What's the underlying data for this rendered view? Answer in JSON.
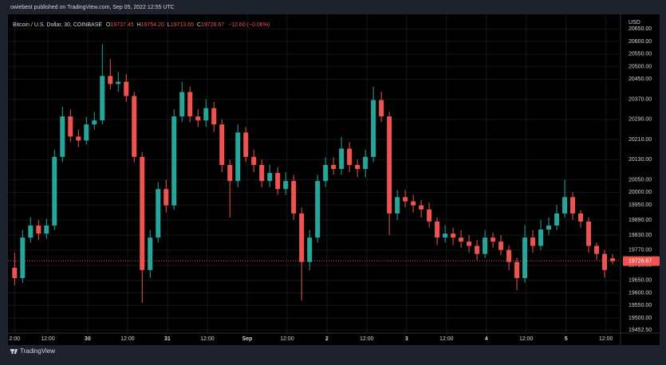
{
  "header": {
    "text": "owiebest published on TradingView.com, Sep 05, 2022 12:55 UTC"
  },
  "footer": {
    "brand": "TradingView"
  },
  "chart_data": {
    "type": "candlestick",
    "legend": {
      "symbol": "Bitcoin / U.S. Dollar, 30, COINBASE",
      "keys": [
        "O",
        "H",
        "L",
        "C"
      ],
      "values": [
        {
          "value": 19737.45,
          "label": "19737.45"
        },
        {
          "value": 19754.2,
          "label": "19754.20"
        },
        {
          "value": 19713.65,
          "label": "19713.65"
        },
        {
          "value": 19726.67,
          "label": "19726.67"
        }
      ],
      "change": {
        "value": -12.6,
        "label": "−12.60 (−0.06%)"
      }
    },
    "y_axis_label": "USD",
    "up_color": "#26a69a",
    "down_color": "#ef5350",
    "x": [
      0,
      2.4,
      4.8,
      7.2,
      9.6,
      12,
      14.4,
      16.8,
      19.2,
      21.6,
      24,
      26.4,
      28.8,
      31.2,
      33.6,
      36,
      38.4,
      40.8,
      43.2,
      45.6,
      48,
      50.4,
      52.8,
      55.2,
      57.6,
      60,
      62.4,
      64.8,
      67.2,
      69.6,
      72,
      74.4,
      76.8,
      79.2,
      81.6,
      84,
      86.4,
      88.8,
      91.2,
      93.6,
      96,
      98.4,
      100.8,
      103.2,
      105.6,
      108,
      110.4,
      112.8,
      115.2,
      117.6,
      120,
      122.4,
      124.8,
      127.2,
      129.6,
      132,
      134.4,
      136.8,
      139.2,
      141.6,
      144,
      146.4,
      148.8,
      151.2,
      153.6,
      156,
      158.4,
      160.8,
      163.2,
      165.6,
      168,
      170.4,
      172.8,
      175.2,
      177.6,
      180
    ],
    "open": [
      19700,
      19659,
      19820,
      19868,
      19836,
      19868,
      20141,
      20302,
      20222,
      20206,
      20270,
      20286,
      20463,
      20431,
      20440,
      20383,
      20141,
      19691,
      19820,
      20013,
      19948,
      20302,
      20399,
      20302,
      20286,
      20335,
      20270,
      20109,
      20045,
      20238,
      20141,
      20109,
      20045,
      20077,
      20013,
      20045,
      19916,
      19723,
      19820,
      20045,
      20109,
      20093,
      20174,
      20109,
      20093,
      20141,
      20367,
      20302,
      19916,
      19981,
      19964,
      19948,
      19932,
      19884,
      19820,
      19836,
      19820,
      19804,
      19787,
      19755,
      19820,
      19804,
      19771,
      19723,
      19659,
      19820,
      19787,
      19852,
      19868,
      19916,
      19981,
      19916,
      19884,
      19787,
      19755,
      19737.45
    ],
    "high": [
      19760,
      19850,
      19900,
      19890,
      19895,
      20170,
      20340,
      20330,
      20250,
      20300,
      20320,
      20590,
      20530,
      20480,
      20470,
      20400,
      20160,
      19850,
      20040,
      20050,
      20330,
      20440,
      20420,
      20330,
      20370,
      20360,
      20290,
      20130,
      20270,
      20260,
      20170,
      20130,
      20110,
      20100,
      20080,
      20070,
      19940,
      19850,
      20070,
      20140,
      20140,
      20220,
      20200,
      20130,
      20170,
      20420,
      20400,
      20320,
      20010,
      20010,
      19990,
      19970,
      19960,
      19900,
      19870,
      19860,
      19850,
      19830,
      19810,
      19850,
      19840,
      19830,
      19790,
      19740,
      19870,
      19850,
      19890,
      19900,
      19950,
      20050,
      20000,
      19930,
      19900,
      19800,
      19770,
      19754.2
    ],
    "low": [
      19630,
      19640,
      19800,
      19810,
      19815,
      19850,
      20120,
      20200,
      20180,
      20190,
      20250,
      20270,
      20410,
      20400,
      20360,
      20120,
      19560,
      19660,
      19800,
      19920,
      19930,
      20280,
      20280,
      20260,
      20260,
      20240,
      20080,
      19900,
      20020,
      20120,
      20080,
      20020,
      20020,
      19990,
      19990,
      19890,
      19570,
      19690,
      19800,
      20020,
      20070,
      20070,
      20080,
      20060,
      20060,
      20120,
      20280,
      19830,
      19890,
      19940,
      19920,
      19900,
      19860,
      19790,
      19800,
      19790,
      19780,
      19760,
      19730,
      19740,
      19780,
      19750,
      19690,
      19610,
      19640,
      19760,
      19770,
      19830,
      19850,
      19900,
      19890,
      19860,
      19760,
      19730,
      19660,
      19713.65
    ],
    "close": [
      19659,
      19820,
      19868,
      19836,
      19868,
      20141,
      20302,
      20222,
      20206,
      20270,
      20286,
      20463,
      20431,
      20440,
      20383,
      20141,
      19691,
      19820,
      20013,
      19948,
      20302,
      20399,
      20302,
      20286,
      20335,
      20270,
      20109,
      20045,
      20238,
      20141,
      20109,
      20045,
      20077,
      20013,
      20045,
      19916,
      19723,
      19820,
      20045,
      20109,
      20093,
      20174,
      20109,
      20093,
      20141,
      20367,
      20302,
      19916,
      19981,
      19964,
      19948,
      19932,
      19884,
      19820,
      19836,
      19820,
      19804,
      19787,
      19755,
      19820,
      19804,
      19771,
      19723,
      19659,
      19820,
      19787,
      19852,
      19868,
      19916,
      19981,
      19916,
      19884,
      19787,
      19755,
      19691,
      19726.67
    ],
    "xlim": [
      -2,
      182.4
    ],
    "ylim": [
      19440,
      20708
    ],
    "xticks": [
      {
        "value": 0,
        "label": "2:00"
      },
      {
        "value": 10,
        "label": "12:00"
      },
      {
        "value": 22,
        "label": "30"
      },
      {
        "value": 34,
        "label": "12:00"
      },
      {
        "value": 46,
        "label": "31"
      },
      {
        "value": 58,
        "label": "12:00"
      },
      {
        "value": 70,
        "label": "Sep"
      },
      {
        "value": 82,
        "label": "12:00"
      },
      {
        "value": 94,
        "label": "2"
      },
      {
        "value": 106,
        "label": "12:00"
      },
      {
        "value": 118,
        "label": "3"
      },
      {
        "value": 130,
        "label": "12:00"
      },
      {
        "value": 142,
        "label": "4"
      },
      {
        "value": 154,
        "label": "12:00"
      },
      {
        "value": 166,
        "label": "5"
      },
      {
        "value": 178,
        "label": "12:00"
      }
    ],
    "yticks": [
      {
        "value": 20650,
        "label": "20650.00"
      },
      {
        "value": 20600,
        "label": "20600.00"
      },
      {
        "value": 20550,
        "label": "20550.00"
      },
      {
        "value": 20500,
        "label": "20500.00"
      },
      {
        "value": 20450,
        "label": "20450.00"
      },
      {
        "value": 20370,
        "label": "20370.00"
      },
      {
        "value": 20290,
        "label": "20290.00"
      },
      {
        "value": 20210,
        "label": "20210.00"
      },
      {
        "value": 20130,
        "label": "20130.00"
      },
      {
        "value": 20050,
        "label": "20050.00"
      },
      {
        "value": 20000,
        "label": "20000.00"
      },
      {
        "value": 19950,
        "label": "19950.00"
      },
      {
        "value": 19890,
        "label": "19890.00"
      },
      {
        "value": 19830,
        "label": "19830.00"
      },
      {
        "value": 19770,
        "label": "19770.00"
      },
      {
        "value": 19710,
        "label": "19710.00"
      },
      {
        "value": 19650,
        "label": "19650.00"
      },
      {
        "value": 19600,
        "label": "19600.00"
      },
      {
        "value": 19550,
        "label": "19550.00"
      },
      {
        "value": 19500,
        "label": "19500.00"
      },
      {
        "value": 19452.5,
        "label": "19452.50"
      }
    ],
    "grid": true
  }
}
